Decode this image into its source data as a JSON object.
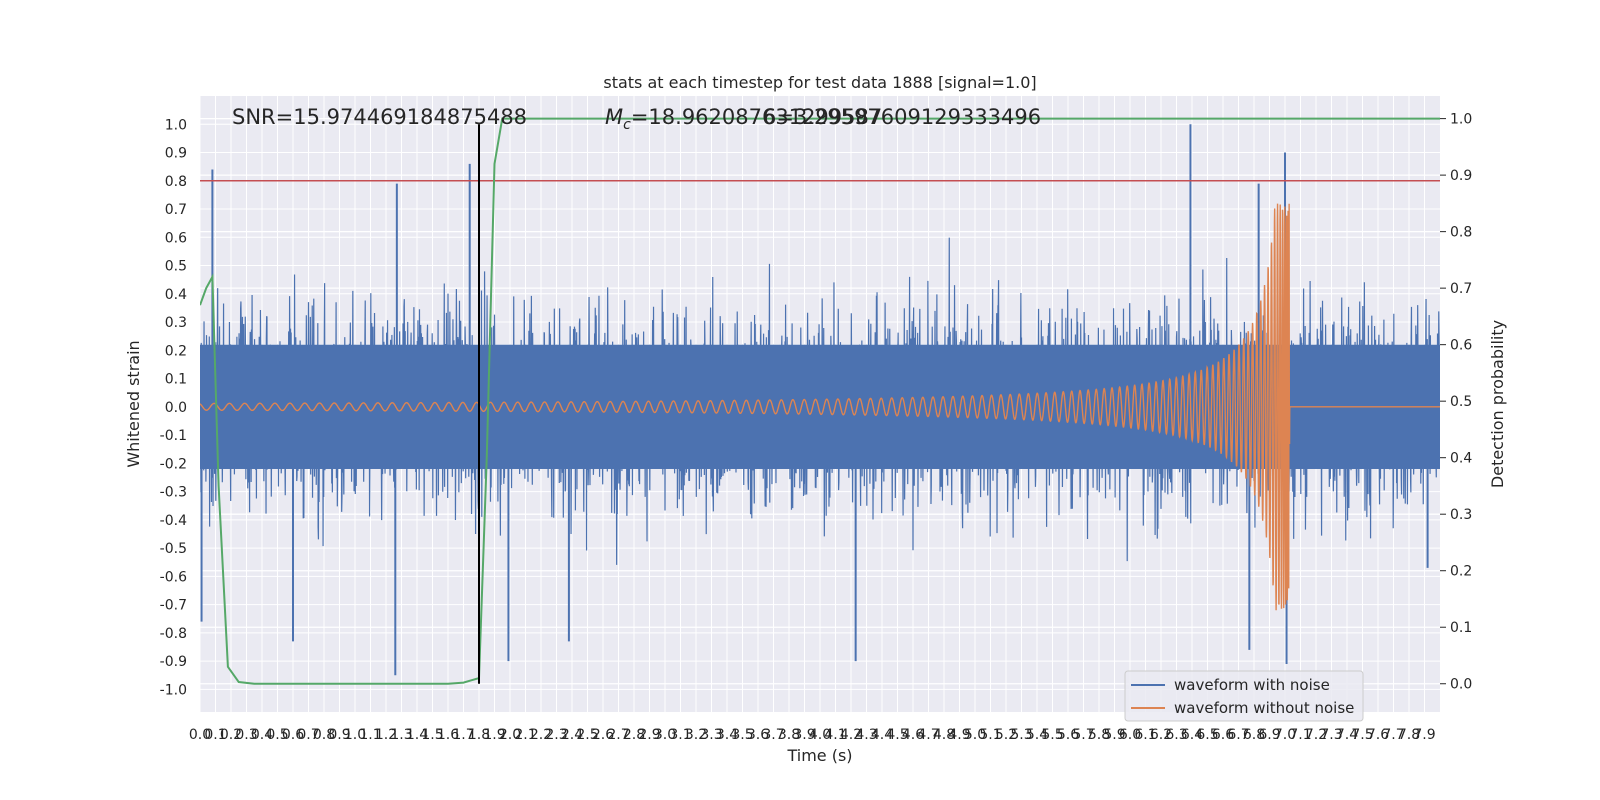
{
  "chart_data": {
    "type": "line",
    "title": "stats at each timestep for test data 1888 [signal=1.0]",
    "xlabel": "Time (s)",
    "ylabel_left": "Whitened strain",
    "ylabel_right": "Detection probability",
    "xlim": [
      0.0,
      8.0
    ],
    "ylim_left": [
      -1.08,
      1.1
    ],
    "ylim_right": [
      -0.05,
      1.04
    ],
    "grid": true,
    "legend_position": "bottom-right",
    "x_ticks": [
      "0.0",
      "0.1",
      "0.2",
      "0.3",
      "0.4",
      "0.5",
      "0.6",
      "0.7",
      "0.8",
      "0.9",
      "1.0",
      "1.1",
      "1.2",
      "1.3",
      "1.4",
      "1.5",
      "1.6",
      "1.7",
      "1.8",
      "1.9",
      "2.0",
      "2.1",
      "2.2",
      "2.3",
      "2.4",
      "2.5",
      "2.6",
      "2.7",
      "2.8",
      "2.9",
      "3.0",
      "3.1",
      "3.2",
      "3.3",
      "3.4",
      "3.5",
      "3.6",
      "3.7",
      "3.8",
      "3.9",
      "4.0",
      "4.1",
      "4.2",
      "4.3",
      "4.4",
      "4.5",
      "4.6",
      "4.7",
      "4.8",
      "4.9",
      "5.0",
      "5.1",
      "5.2",
      "5.3",
      "5.4",
      "5.5",
      "5.6",
      "5.7",
      "5.8",
      "5.9",
      "6.0",
      "6.1",
      "6.2",
      "6.3",
      "6.4",
      "6.5",
      "6.6",
      "6.7",
      "6.8",
      "6.9",
      "7.0",
      "7.1",
      "7.2",
      "7.3",
      "7.4",
      "7.5",
      "7.6",
      "7.7",
      "7.8",
      "7.9"
    ],
    "y_ticks_left": [
      "-1.0",
      "-0.9",
      "-0.8",
      "-0.7",
      "-0.6",
      "-0.5",
      "-0.4",
      "-0.3",
      "-0.2",
      "-0.1",
      "0.0",
      "0.1",
      "0.2",
      "0.3",
      "0.4",
      "0.5",
      "0.6",
      "0.7",
      "0.8",
      "0.9",
      "1.0"
    ],
    "y_ticks_right": [
      "0.0",
      "0.1",
      "0.2",
      "0.3",
      "0.4",
      "0.5",
      "0.6",
      "0.7",
      "0.8",
      "0.9",
      "1.0"
    ],
    "annotations": {
      "snr": "SNR=15.974469184875488",
      "mc": "=18.962087631299587",
      "mc_prefix": "M",
      "mc_subscript": "c",
      "overlap": "6=3.29597609129333496"
    },
    "threshold_line": {
      "y": 0.8,
      "color": "#c44e52"
    },
    "detection_marker": {
      "x": 1.8,
      "color": "#000000"
    },
    "series": [
      {
        "name": "waveform with noise",
        "color": "#4c72b0",
        "style": "noise band",
        "envelope_typical": 0.35,
        "peak_points": [
          {
            "x": 0.01,
            "y": -0.76
          },
          {
            "x": 0.08,
            "y": 0.84
          },
          {
            "x": 1.27,
            "y": 0.79
          },
          {
            "x": 1.26,
            "y": -0.95
          },
          {
            "x": 1.74,
            "y": 0.86
          },
          {
            "x": 1.99,
            "y": -0.9
          },
          {
            "x": 6.39,
            "y": 1.0
          },
          {
            "x": 6.83,
            "y": 0.79
          },
          {
            "x": 7.0,
            "y": 0.9
          },
          {
            "x": 7.01,
            "y": -0.91
          },
          {
            "x": 6.77,
            "y": -0.86
          },
          {
            "x": 4.23,
            "y": -0.9
          },
          {
            "x": 2.38,
            "y": -0.83
          },
          {
            "x": 0.6,
            "y": -0.83
          },
          {
            "x": 7.92,
            "y": -0.57
          }
        ]
      },
      {
        "name": "waveform without noise",
        "color": "#dd8452",
        "style": "chirp",
        "merger_time": 7.03,
        "amplitude_start": 0.012,
        "amplitude_peak": 0.72,
        "peak_min": -0.75
      },
      {
        "name": "detection probability",
        "color": "#55a868",
        "axis": "right",
        "x": [
          0.0,
          0.04,
          0.08,
          0.12,
          0.18,
          0.25,
          0.35,
          0.5,
          0.8,
          1.2,
          1.6,
          1.7,
          1.75,
          1.8,
          1.85,
          1.9,
          1.95,
          2.0,
          3.0,
          4.0,
          5.0,
          6.0,
          7.0,
          8.0
        ],
        "y": [
          0.67,
          0.7,
          0.72,
          0.35,
          0.03,
          0.003,
          0.0,
          0.0,
          0.0,
          0.0,
          0.0,
          0.002,
          0.006,
          0.01,
          0.4,
          0.92,
          1.0,
          1.0,
          1.0,
          1.0,
          1.0,
          1.0,
          1.0,
          1.0
        ]
      }
    ]
  }
}
